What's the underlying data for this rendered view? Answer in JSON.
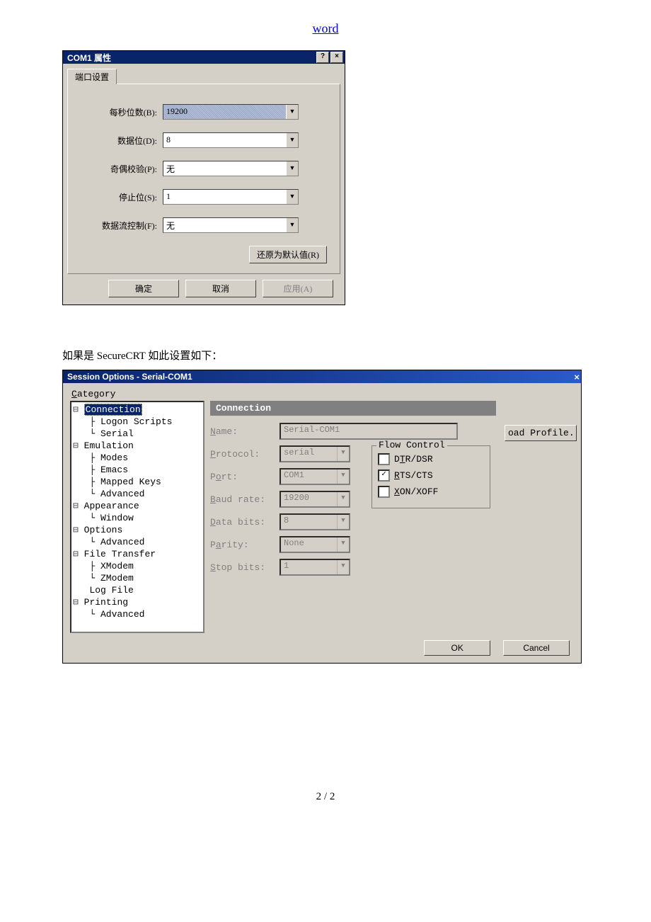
{
  "header_link": "word",
  "dlg1": {
    "title": "COM1 属性",
    "help_btn": "?",
    "close_btn": "×",
    "tab_label": "端口设置",
    "rows": {
      "baud": {
        "label": "每秒位数(B):",
        "value": "19200"
      },
      "data": {
        "label": "数据位(D):",
        "value": "8"
      },
      "parity": {
        "label": "奇偶校验(P):",
        "value": "无"
      },
      "stop": {
        "label": "停止位(S):",
        "value": "1"
      },
      "flow": {
        "label": "数据流控制(F):",
        "value": "无"
      }
    },
    "reset_btn": "还原为默认值(R)",
    "ok_btn": "确定",
    "cancel_btn": "取消",
    "apply_btn": "应用(A)"
  },
  "caption": "如果是 SecureCRT  如此设置如下：",
  "dlg2": {
    "title": "Session Options - Serial-COM1",
    "close_btn": "×",
    "category_label": "Category",
    "tree": [
      "⊟ Connection",
      "  ├ Logon Scripts",
      "  └ Serial",
      "⊟ Emulation",
      "  ├ Modes",
      "  ├ Emacs",
      "  ├ Mapped Keys",
      "  └ Advanced",
      "⊟ Appearance",
      "  └ Window",
      "⊟ Options",
      "  └ Advanced",
      "⊟ File Transfer",
      "  ├ XModem",
      "  └ ZModem",
      "  Log File",
      "⊟ Printing",
      "  └ Advanced"
    ],
    "tree_selected": "Connection",
    "panel_header": "Connection",
    "fields": {
      "name": {
        "label": "Name:",
        "value": "Serial-COM1",
        "dropdown": false
      },
      "protocol": {
        "label": "Protocol:",
        "value": "serial"
      },
      "port": {
        "label": "Port:",
        "value": "COM1"
      },
      "baud": {
        "label": "Baud rate:",
        "value": "19200"
      },
      "databits": {
        "label": "Data bits:",
        "value": "8"
      },
      "parity": {
        "label": "Parity:",
        "value": "None"
      },
      "stopbits": {
        "label": "Stop bits:",
        "value": "1"
      }
    },
    "flow": {
      "legend": "Flow Control",
      "dtr": {
        "label": "DTR/DSR",
        "checked": false
      },
      "rts": {
        "label": "RTS/CTS",
        "checked": true
      },
      "xon": {
        "label": "XON/XOFF",
        "checked": false
      }
    },
    "load_profile_btn": "oad Profile..",
    "ok_btn": "OK",
    "cancel_btn": "Cancel"
  },
  "footer": "2 / 2",
  "colors": {
    "window_bg": "#d4d0c8",
    "titlebar_bg": "#0a246a",
    "titlebar_fg": "#ffffff",
    "disabled_fg": "#808080",
    "link_fg": "#0000ee"
  }
}
